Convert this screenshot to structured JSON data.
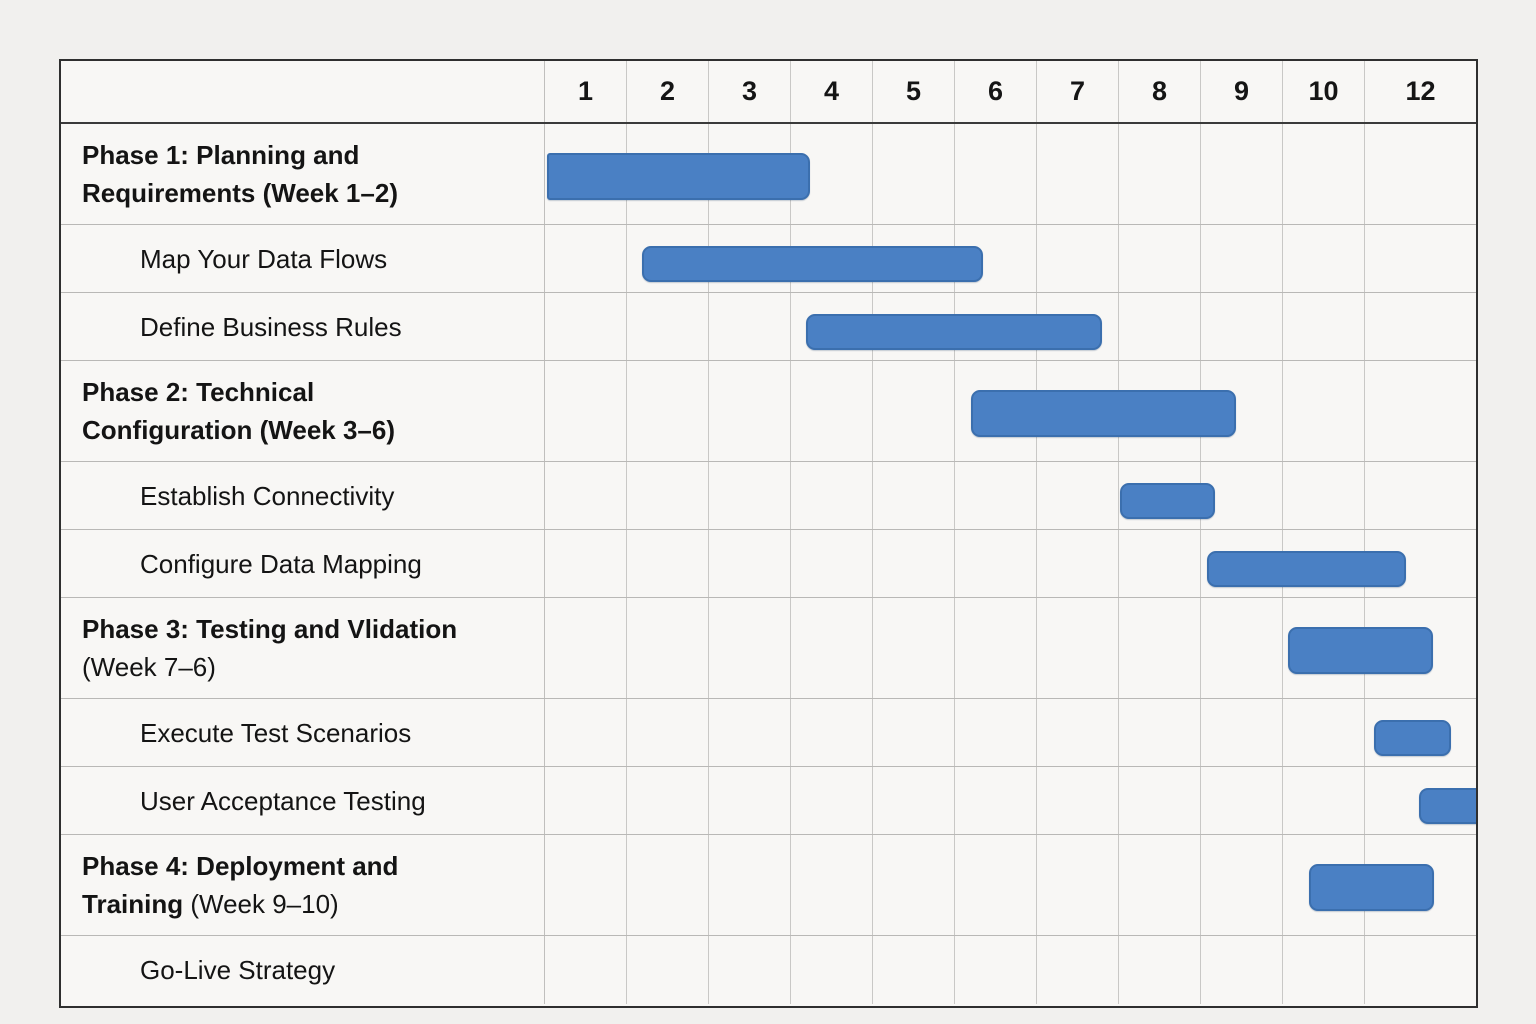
{
  "table": {
    "corner_label": "",
    "week_labels": [
      "1",
      "2",
      "3",
      "4",
      "5",
      "6",
      "7",
      "8",
      "9",
      "10",
      "12"
    ]
  },
  "rows": [
    {
      "type": "phase",
      "bold": "Phase 1: Planning and\nRequirements (Week 1–2)",
      "normal": "",
      "bar": {
        "start_unit": 0.02,
        "end_unit": 3.23,
        "flat_left": true,
        "clip_right": false
      }
    },
    {
      "type": "task",
      "bold": "",
      "normal": "Map Your Data Flows",
      "bar": {
        "start_unit": 1.18,
        "end_unit": 5.34,
        "flat_left": false,
        "clip_right": false
      }
    },
    {
      "type": "task",
      "bold": "",
      "normal": "Define Business Rules",
      "bar": {
        "start_unit": 3.18,
        "end_unit": 6.79,
        "flat_left": false,
        "clip_right": false
      }
    },
    {
      "type": "phase",
      "bold": "Phase 2: Technical\nConfiguration (Week 3–6)",
      "normal": "",
      "bar": {
        "start_unit": 5.2,
        "end_unit": 8.43,
        "flat_left": false,
        "clip_right": false
      }
    },
    {
      "type": "task",
      "bold": "",
      "normal": "Establish Connectivity",
      "bar": {
        "start_unit": 7.01,
        "end_unit": 8.17,
        "flat_left": false,
        "clip_right": false
      }
    },
    {
      "type": "task",
      "bold": "",
      "normal": "Configure Data Mapping",
      "bar": {
        "start_unit": 8.07,
        "end_unit": 10.36,
        "flat_left": false,
        "clip_right": false
      }
    },
    {
      "type": "phase",
      "bold": "Phase 3: Testing and Vlidation\n",
      "normal": "(Week 7–6)",
      "bar": {
        "start_unit": 9.06,
        "end_unit": 10.59,
        "flat_left": false,
        "clip_right": false
      }
    },
    {
      "type": "task",
      "bold": "",
      "normal": "Execute Test Scenarios",
      "bar": {
        "start_unit": 10.08,
        "end_unit": 10.75,
        "flat_left": false,
        "clip_right": false
      }
    },
    {
      "type": "task",
      "bold": "",
      "normal": "User Acceptance Testing",
      "bar": {
        "start_unit": 10.47,
        "end_unit": 11.0,
        "flat_left": false,
        "clip_right": true
      }
    },
    {
      "type": "phase",
      "bold": "Phase 4: Deployment and\nTraining ",
      "normal": "(Week 9–10)",
      "bar": {
        "start_unit": 9.32,
        "end_unit": 10.6,
        "flat_left": false,
        "clip_right": false
      }
    },
    {
      "type": "task",
      "bold": "",
      "normal": "Go-Live Strategy",
      "bar": null
    }
  ],
  "chart_data": {
    "type": "bar",
    "subtype": "gantt",
    "title": "",
    "xlabel": "",
    "ylabel": "",
    "x_axis_column_headers": [
      "1",
      "2",
      "3",
      "4",
      "5",
      "6",
      "7",
      "8",
      "9",
      "10",
      "12"
    ],
    "x_axis_note": "Week-number columns; header skips 11 and jumps from 10 to 12; the final '12' column is extra wide",
    "grid": true,
    "legend": "none",
    "bar_color": "#4a80c4",
    "bar_border_color": "#3b6fae",
    "unit_definition": "start/end measured in column units: 0 = left edge of column '1', each numbered column = 1 unit, 10→11 spans the wide '12' column; column 1 left edge corresponds to Week 1 start",
    "tasks": [
      {
        "label": "Phase 1: Planning and Requirements (Week 1–2)",
        "level": "phase",
        "start": 0.02,
        "end": 3.23
      },
      {
        "label": "Map Your Data Flows",
        "level": "subtask",
        "start": 1.18,
        "end": 5.34
      },
      {
        "label": "Define Business Rules",
        "level": "subtask",
        "start": 3.18,
        "end": 6.79
      },
      {
        "label": "Phase 2: Technical Configuration (Week 3–6)",
        "level": "phase",
        "start": 5.2,
        "end": 8.43
      },
      {
        "label": "Establish Connectivity",
        "level": "subtask",
        "start": 7.01,
        "end": 8.17
      },
      {
        "label": "Configure Data Mapping",
        "level": "subtask",
        "start": 8.07,
        "end": 10.36
      },
      {
        "label": "Phase 3: Testing and Vlidation (Week 7–6)",
        "level": "phase",
        "start": 9.06,
        "end": 10.59
      },
      {
        "label": "Execute Test Scenarios",
        "level": "subtask",
        "start": 10.08,
        "end": 10.75
      },
      {
        "label": "User Acceptance Testing",
        "level": "subtask",
        "start": 10.47,
        "end": 11.0,
        "clipped_at_right_edge": true
      },
      {
        "label": "Phase 4: Deployment and Training (Week 9–10)",
        "level": "phase",
        "start": 9.32,
        "end": 10.6
      },
      {
        "label": "Go-Live Strategy",
        "level": "subtask",
        "start": null,
        "end": null
      }
    ]
  },
  "colors": {
    "page_background": "#f1f0ee",
    "cell_background": "#f8f7f5",
    "grid_line_vertical": "#c9c8c6",
    "grid_line_horizontal": "#b9b8b6",
    "outer_border": "#2f2f2f",
    "bar_fill": "#4a80c4",
    "bar_border": "#3b6fae",
    "text": "#141414"
  }
}
